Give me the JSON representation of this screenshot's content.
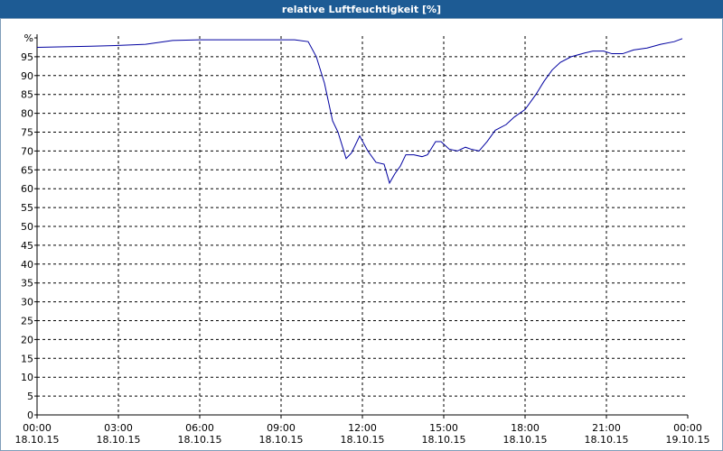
{
  "chart_data": {
    "type": "line",
    "title": "relative Luftfeuchtigkeit [%]",
    "x": [
      0,
      2,
      3,
      4,
      5,
      6,
      8,
      9,
      9.5,
      10,
      10.3,
      10.6,
      10.9,
      11.1,
      11.4,
      11.6,
      11.9,
      12.2,
      12.5,
      12.8,
      13.0,
      13.2,
      13.4,
      13.6,
      13.9,
      14.2,
      14.4,
      14.7,
      14.9,
      15.2,
      15.5,
      15.8,
      16.0,
      16.3,
      16.6,
      16.9,
      17.3,
      17.6,
      18.0,
      18.4,
      18.7,
      19.0,
      19.3,
      19.7,
      20.2,
      20.5,
      20.9,
      21.2,
      21.6,
      22.0,
      22.5,
      23.0,
      23.5,
      23.8
    ],
    "series": [
      {
        "color": "#0000a0",
        "values": [
          97.5,
          97.8,
          98,
          98.3,
          99.3,
          99.5,
          99.5,
          99.5,
          99.5,
          99,
          95,
          88,
          78,
          75,
          68,
          69.5,
          74,
          70,
          67,
          66.5,
          61.5,
          64,
          66,
          69,
          69,
          68.5,
          69,
          72.5,
          72.5,
          70.5,
          70,
          71,
          70.5,
          70,
          72.5,
          75.5,
          77,
          79,
          81,
          85,
          88.5,
          91.5,
          93.5,
          95,
          96,
          96.5,
          96.5,
          95.8,
          95.8,
          96.8,
          97.3,
          98.3,
          99,
          99.8
        ]
      }
    ],
    "xlim": [
      0,
      24
    ],
    "xticks": [
      {
        "value": 0,
        "label": "00:00\n18.10.15"
      },
      {
        "value": 3,
        "label": "03:00\n18.10.15"
      },
      {
        "value": 6,
        "label": "06:00\n18.10.15"
      },
      {
        "value": 9,
        "label": "09:00\n18.10.15"
      },
      {
        "value": 12,
        "label": "12:00\n18.10.15"
      },
      {
        "value": 15,
        "label": "15:00\n18.10.15"
      },
      {
        "value": 18,
        "label": "18:00\n18.10.15"
      },
      {
        "value": 21,
        "label": "21:00\n18.10.15"
      },
      {
        "value": 24,
        "label": "00:00\n19.10.15"
      }
    ],
    "ylim": [
      0,
      100
    ],
    "yticks": [
      0,
      5,
      10,
      15,
      20,
      25,
      30,
      35,
      40,
      45,
      50,
      55,
      60,
      65,
      70,
      75,
      80,
      85,
      90,
      95,
      {
        "value": 100,
        "label": "%"
      }
    ],
    "grid": true
  }
}
